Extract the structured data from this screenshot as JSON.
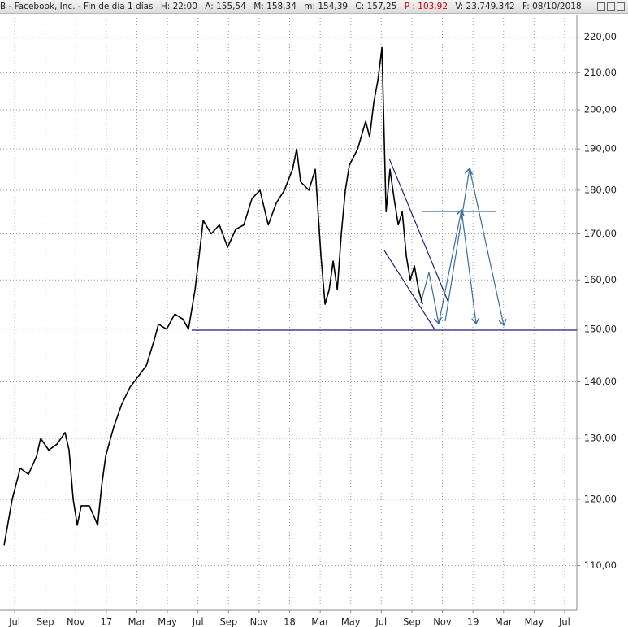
{
  "header": [
    "B - Facebook, Inc. - Fin de día 1 días",
    "H: 22:00",
    "A: 155,54",
    "M: 158,34",
    "m: 154,39",
    "C: 157,25",
    "P : 103,92",
    "V: 23.749.342",
    "F: 08/10/2018"
  ],
  "chart_data": {
    "type": "line",
    "log_scale": true,
    "grid": true,
    "xlim": [
      -0.96,
      36.8
    ],
    "ylim": [
      103.8,
      226.6
    ],
    "xticks": [
      {
        "value": 0,
        "label": "Jul"
      },
      {
        "value": 2,
        "label": "Sep"
      },
      {
        "value": 4,
        "label": "Nov"
      },
      {
        "value": 6,
        "label": "17"
      },
      {
        "value": 8,
        "label": "Mar"
      },
      {
        "value": 10,
        "label": "May"
      },
      {
        "value": 12,
        "label": "Jul"
      },
      {
        "value": 14,
        "label": "Sep"
      },
      {
        "value": 16,
        "label": "Nov"
      },
      {
        "value": 18,
        "label": "18"
      },
      {
        "value": 20,
        "label": "Mar"
      },
      {
        "value": 22,
        "label": "May"
      },
      {
        "value": 24,
        "label": "Jul"
      },
      {
        "value": 26,
        "label": "Sep"
      },
      {
        "value": 28,
        "label": "Nov"
      },
      {
        "value": 30,
        "label": "19"
      },
      {
        "value": 32,
        "label": "Mar"
      },
      {
        "value": 34,
        "label": "May"
      },
      {
        "value": 36,
        "label": "Jul"
      }
    ],
    "yticks": [
      {
        "value": 110,
        "label": "110,00"
      },
      {
        "value": 120,
        "label": "120,00"
      },
      {
        "value": 130,
        "label": "130,00"
      },
      {
        "value": 140,
        "label": "140,00"
      },
      {
        "value": 150,
        "label": "150,00"
      },
      {
        "value": 160,
        "label": "160,00"
      },
      {
        "value": 170,
        "label": "170,00"
      },
      {
        "value": 180,
        "label": "180,00"
      },
      {
        "value": 190,
        "label": "190,00"
      },
      {
        "value": 200,
        "label": "200,00"
      },
      {
        "value": 210,
        "label": "210,00"
      },
      {
        "value": 220,
        "label": "220,00"
      }
    ],
    "x": [
      -0.69,
      -0.16,
      0.37,
      0.9,
      1.44,
      1.7,
      2.23,
      2.77,
      3.3,
      3.56,
      3.83,
      4.1,
      4.36,
      4.89,
      5.43,
      5.69,
      5.96,
      6.49,
      7.02,
      7.55,
      8.09,
      8.62,
      9.15,
      9.41,
      9.95,
      10.48,
      11.01,
      11.38,
      11.81,
      12.07,
      12.34,
      12.87,
      13.4,
      13.94,
      14.47,
      15.0,
      15.53,
      16.06,
      16.6,
      17.13,
      17.66,
      18.19,
      18.46,
      18.72,
      19.26,
      19.68,
      20.05,
      20.32,
      20.59,
      20.85,
      21.12,
      21.38,
      21.65,
      21.91,
      22.45,
      22.98,
      23.24,
      23.51,
      23.78,
      24.04,
      24.31,
      24.57,
      24.84,
      25.11,
      25.37,
      25.64,
      25.9,
      26.17,
      26.44,
      26.7
    ],
    "series": [
      {
        "color": "#000000",
        "values": [
          113,
          120,
          125,
          124,
          127,
          130,
          128,
          129,
          131,
          128,
          120,
          116,
          119,
          119,
          116,
          122,
          127,
          132,
          136,
          139,
          141,
          143,
          148,
          151,
          150,
          153,
          152,
          150,
          158,
          165,
          173,
          170,
          172,
          167,
          171,
          172,
          178,
          180,
          172,
          177,
          180,
          185,
          190,
          182,
          180,
          185,
          165,
          155,
          158,
          164,
          158,
          170,
          180,
          186,
          190,
          197,
          193,
          202,
          208,
          217,
          175,
          185,
          178,
          172,
          175,
          165,
          160,
          163,
          158,
          155
        ]
      }
    ]
  }
}
